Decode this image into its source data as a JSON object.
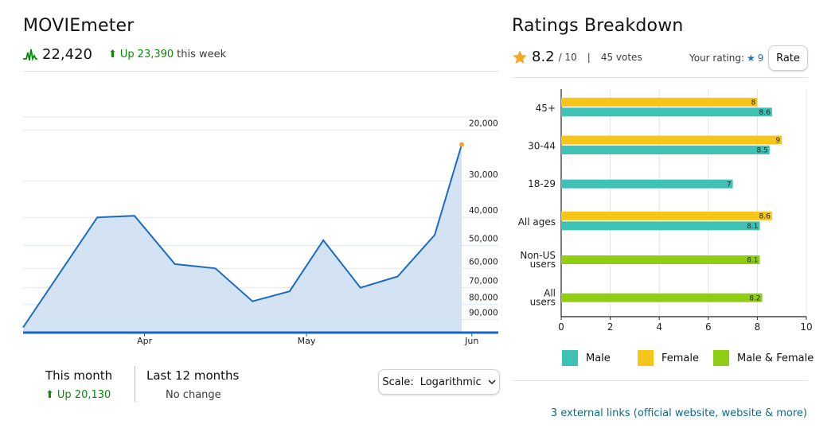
{
  "moviemeter": {
    "title": "MOVIEmeter",
    "rank": "22,420",
    "trend_prefix": "Up",
    "trend_value": "23,390",
    "trend_suffix": "this week",
    "this_month_label": "This month",
    "this_month_value": "Up 20,130",
    "last12_label": "Last 12 months",
    "last12_value": "No change",
    "scale_label": "Scale:",
    "scale_value": "Logarithmic"
  },
  "ratings": {
    "title": "Ratings Breakdown",
    "score": "8.2",
    "out_of": "/ 10",
    "votes": "45 votes",
    "your_rating_label": "Your rating:",
    "your_rating_value": "9",
    "rate_button": "Rate",
    "external_links": "3 external links (official website, website & more)"
  },
  "colors": {
    "male": "#3ec2b5",
    "female": "#f5c518",
    "both": "#8fce13",
    "line": "#1a6bc4",
    "area": "#d4e3f3",
    "star": "#f5a623",
    "accent_green": "#0a8a0a"
  },
  "chart_data": [
    {
      "type": "area",
      "title": "MOVIEmeter",
      "y_scale": "log",
      "y_reversed": true,
      "y_tick_labels": [
        "20,000",
        "30,000",
        "40,000",
        "50,000",
        "60,000",
        "70,000",
        "80,000",
        "90,000"
      ],
      "y_tick_values": [
        20000,
        30000,
        40000,
        50000,
        60000,
        70000,
        80000,
        90000
      ],
      "ylim": [
        100000,
        17000
      ],
      "x_tick_labels": [
        "Apr",
        "May",
        "Jun"
      ],
      "x_tick_weeks": [
        3.6,
        8.4,
        13.3
      ],
      "series": [
        {
          "name": "MOVIEmeter rank",
          "x": [
            0,
            2.2,
            3.3,
            4.5,
            5.7,
            6.8,
            7.9,
            8.9,
            10.0,
            11.1,
            12.2,
            13.0
          ],
          "values": [
            96000,
            40000,
            39500,
            58000,
            60000,
            78000,
            72000,
            48000,
            70000,
            64000,
            46000,
            22420
          ]
        }
      ]
    },
    {
      "type": "bar",
      "orientation": "horizontal",
      "title": "Ratings Breakdown",
      "categories": [
        "45+",
        "30-44",
        "18-29",
        "All ages",
        "Non-US users",
        "All users"
      ],
      "series": [
        {
          "name": "Female",
          "values": [
            8,
            9,
            null,
            8.6,
            null,
            null
          ]
        },
        {
          "name": "Male",
          "values": [
            8.6,
            8.5,
            7,
            8.1,
            null,
            null
          ]
        },
        {
          "name": "Male & Female",
          "values": [
            null,
            null,
            null,
            null,
            8.1,
            8.2
          ]
        }
      ],
      "xlim": [
        0,
        10
      ],
      "x_ticks": [
        0,
        2,
        4,
        6,
        8,
        10
      ],
      "legend": [
        "Male",
        "Female",
        "Male & Female"
      ],
      "legend_position": "bottom"
    }
  ]
}
